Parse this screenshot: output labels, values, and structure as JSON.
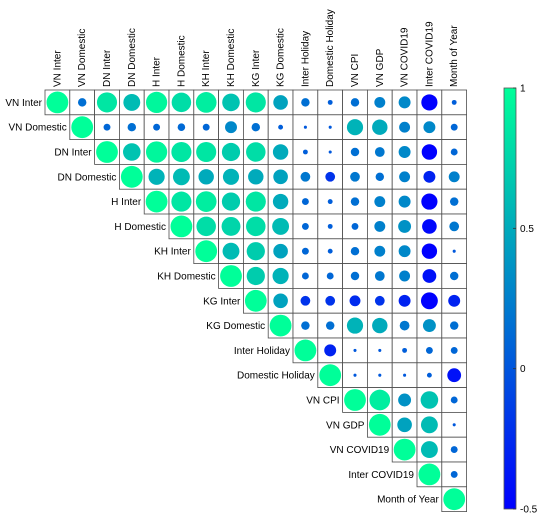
{
  "chart_data": {
    "type": "heatmap",
    "subtype": "correlation-circles-upper-triangular",
    "variables": [
      "VN Inter",
      "VN Domestic",
      "DN Inter",
      "DN Domestic",
      "H Inter",
      "H Domestic",
      "KH Inter",
      "KH Domestic",
      "KG Inter",
      "KG Domestic",
      "Inter Holiday",
      "Domestic Holiday",
      "VN CPI",
      "VN GDP",
      "VN COVID19",
      "Inter COVID19",
      "Month of Year"
    ],
    "matrix": [
      [
        1,
        0.15,
        0.85,
        0.6,
        0.95,
        0.8,
        0.9,
        0.65,
        0.85,
        0.45,
        0.15,
        0.05,
        0.15,
        0.25,
        0.3,
        -0.55,
        0.05
      ],
      [
        null,
        1,
        0.1,
        0.15,
        0.1,
        0.12,
        0.1,
        0.3,
        0.15,
        0.05,
        0.02,
        0.02,
        0.55,
        0.5,
        0.25,
        0.3,
        0.1
      ],
      [
        null,
        null,
        1,
        0.65,
        0.95,
        0.85,
        0.85,
        0.7,
        0.8,
        0.5,
        0.05,
        0.02,
        0.15,
        0.2,
        0.3,
        -0.5,
        0.1
      ],
      [
        null,
        null,
        null,
        1,
        0.55,
        0.6,
        0.5,
        0.55,
        0.5,
        0.45,
        0.2,
        -0.2,
        0.2,
        0.15,
        0.25,
        -0.3,
        0.25
      ],
      [
        null,
        null,
        null,
        null,
        1,
        0.85,
        0.9,
        0.7,
        0.85,
        0.5,
        0.1,
        0.05,
        0.15,
        0.25,
        0.3,
        -0.55,
        0.15
      ],
      [
        null,
        null,
        null,
        null,
        null,
        1,
        0.8,
        0.75,
        0.8,
        0.6,
        0.1,
        0.05,
        0.1,
        0.25,
        0.35,
        -0.45,
        0.2
      ],
      [
        null,
        null,
        null,
        null,
        null,
        null,
        1,
        0.6,
        0.7,
        0.45,
        0.1,
        0.05,
        0.15,
        0.25,
        0.3,
        -0.5,
        0.02
      ],
      [
        null,
        null,
        null,
        null,
        null,
        null,
        null,
        1,
        0.7,
        0.55,
        0.1,
        0.1,
        0.15,
        0.2,
        0.25,
        -0.4,
        0.15
      ],
      [
        null,
        null,
        null,
        null,
        null,
        null,
        null,
        null,
        1,
        0.45,
        -0.2,
        -0.2,
        -0.25,
        -0.2,
        -0.3,
        -0.6,
        -0.3
      ],
      [
        null,
        null,
        null,
        null,
        null,
        null,
        null,
        null,
        null,
        1,
        0.15,
        0.15,
        0.55,
        0.5,
        0.2,
        0.35,
        0.15
      ],
      [
        null,
        null,
        null,
        null,
        null,
        null,
        null,
        null,
        null,
        null,
        1,
        -0.3,
        0.02,
        0.02,
        0.05,
        0.1,
        0.1
      ],
      [
        null,
        null,
        null,
        null,
        null,
        null,
        null,
        null,
        null,
        null,
        null,
        1,
        0.02,
        0.02,
        0.02,
        0.05,
        -0.4
      ],
      [
        null,
        null,
        null,
        null,
        null,
        null,
        null,
        null,
        null,
        null,
        null,
        null,
        1,
        0.9,
        0.35,
        0.65,
        0.1
      ],
      [
        null,
        null,
        null,
        null,
        null,
        null,
        null,
        null,
        null,
        null,
        null,
        null,
        null,
        1,
        0.45,
        0.6,
        0.02
      ],
      [
        null,
        null,
        null,
        null,
        null,
        null,
        null,
        null,
        null,
        null,
        null,
        null,
        null,
        null,
        1,
        0.6,
        0.1
      ],
      [
        null,
        null,
        null,
        null,
        null,
        null,
        null,
        null,
        null,
        null,
        null,
        null,
        null,
        null,
        null,
        1,
        0.1
      ],
      [
        null,
        null,
        null,
        null,
        null,
        null,
        null,
        null,
        null,
        null,
        null,
        null,
        null,
        null,
        null,
        null,
        1
      ]
    ],
    "colorbar": {
      "range": [
        -0.5,
        1
      ],
      "ticks": [
        1,
        0.5,
        0,
        -0.5
      ],
      "tick_labels": [
        "1",
        "0.5",
        "0",
        "-0.5"
      ],
      "colors": {
        "low": "#0000ff",
        "high": "#00ff99"
      }
    },
    "grid": false,
    "legend": "right colorbar"
  }
}
